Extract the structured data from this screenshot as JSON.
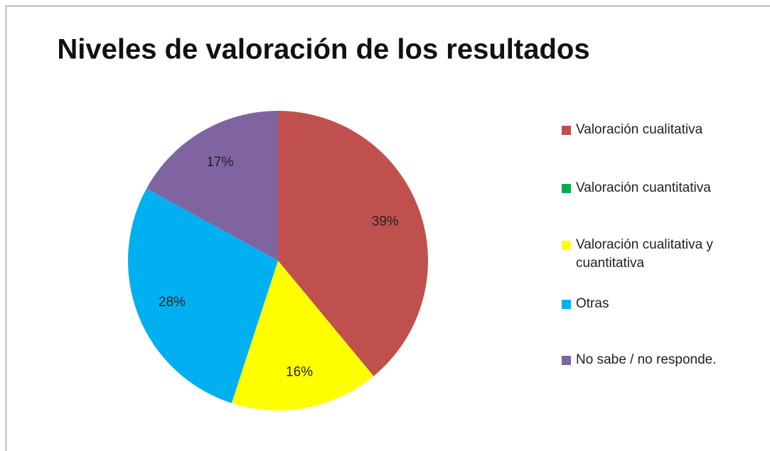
{
  "chart_data": {
    "type": "pie",
    "title": "Niveles de valoración de los resultados",
    "categories": [
      "Valoración cualitativa",
      "Valoración cuantitativa",
      "Valoración cualitativa y cuantitativa",
      "Otras",
      "No sabe / no responde."
    ],
    "values": [
      39,
      0,
      16,
      28,
      17
    ],
    "value_labels": [
      "39%",
      null,
      "16%",
      "28%",
      "17%"
    ],
    "colors": [
      "#c0504d",
      "#00b050",
      "#ffff00",
      "#00b0f0",
      "#8064a2"
    ],
    "legend": "right"
  }
}
